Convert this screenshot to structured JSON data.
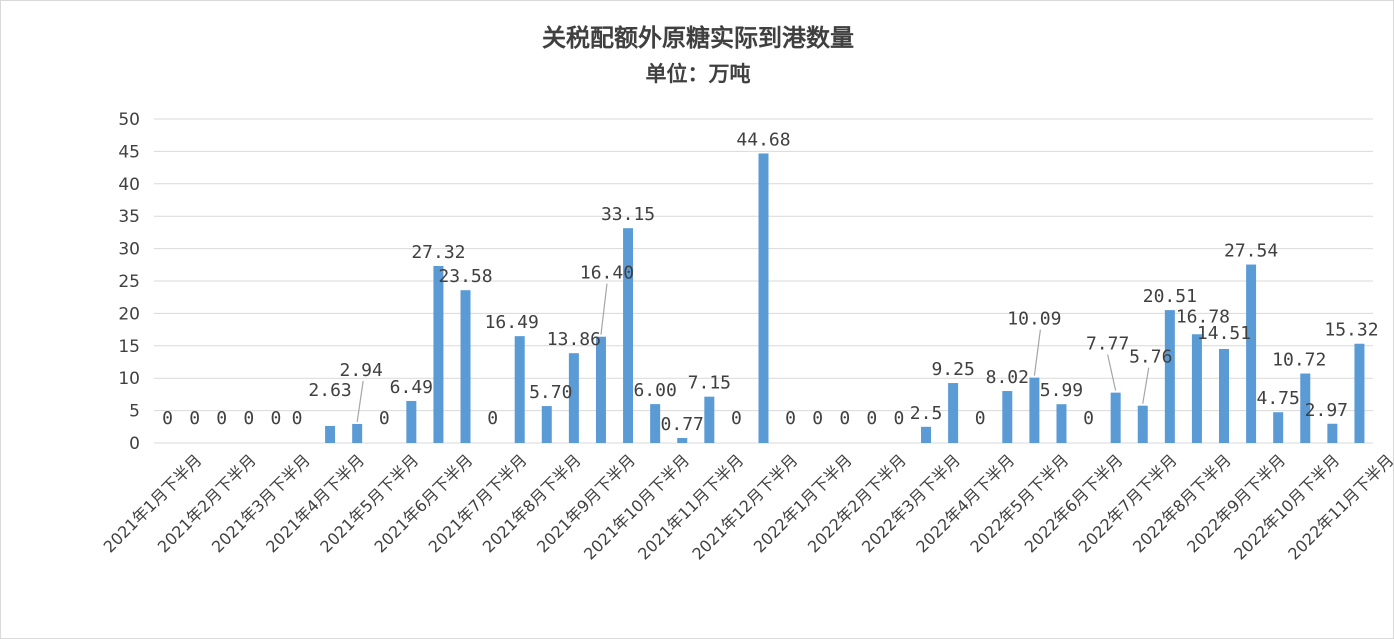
{
  "chart_data": {
    "type": "bar",
    "title": "关税配额外原糖实际到港数量",
    "subtitle": "单位：万吨",
    "ylim": [
      0,
      50
    ],
    "yticks": [
      0,
      5,
      10,
      15,
      20,
      25,
      30,
      35,
      40,
      45,
      50
    ],
    "grid": true,
    "bar_color": "#5b9bd5",
    "text_color": "#404040",
    "grid_color": "#d9d9d9",
    "x_tick_labels": [
      "2021年1月下半月",
      "2021年2月下半月",
      "2021年3月下半月",
      "2021年4月下半月",
      "2021年5月下半月",
      "2021年6月下半月",
      "2021年7月下半月",
      "2021年8月下半月",
      "2021年9月下半月",
      "2021年10月下半月",
      "2021年11月下半月",
      "2021年12月下半月",
      "2022年1月下半月",
      "2022年2月下半月",
      "2022年3月下半月",
      "2022年4月下半月",
      "2022年5月下半月",
      "2022年6月下半月",
      "2022年7月下半月",
      "2022年8月下半月",
      "2022年9月下半月",
      "2022年10月下半月",
      "2022年11月下半月"
    ],
    "values": [
      0,
      0,
      0,
      0,
      0,
      0,
      2.63,
      2.94,
      0,
      6.49,
      27.32,
      23.58,
      0,
      16.49,
      5.7,
      13.86,
      16.4,
      33.15,
      6.0,
      0.77,
      7.15,
      0,
      44.68,
      0,
      0,
      0,
      0,
      0,
      2.5,
      9.25,
      0,
      8.02,
      10.09,
      5.99,
      0,
      7.77,
      5.76,
      20.51,
      16.78,
      14.51,
      27.54,
      4.75,
      10.72,
      2.97,
      15.32
    ],
    "data_labels": [
      "0",
      "0",
      "0",
      "0",
      "0",
      "0",
      "2.63",
      "2.94",
      "0",
      "6.49",
      "27.32",
      "23.58",
      "0",
      "16.49",
      "5.70",
      "13.86",
      "16.40",
      "33.15",
      "6.00",
      "0.77",
      "7.15",
      "0",
      "44.68",
      "0",
      "0",
      "0",
      "0",
      "0",
      "2.5",
      "9.25",
      "0",
      "8.02",
      "10.09",
      "5.99",
      "0",
      "7.77",
      "5.76",
      "20.51",
      "16.78",
      "14.51",
      "27.54",
      "4.75",
      "10.72",
      "2.97",
      "15.32"
    ]
  }
}
